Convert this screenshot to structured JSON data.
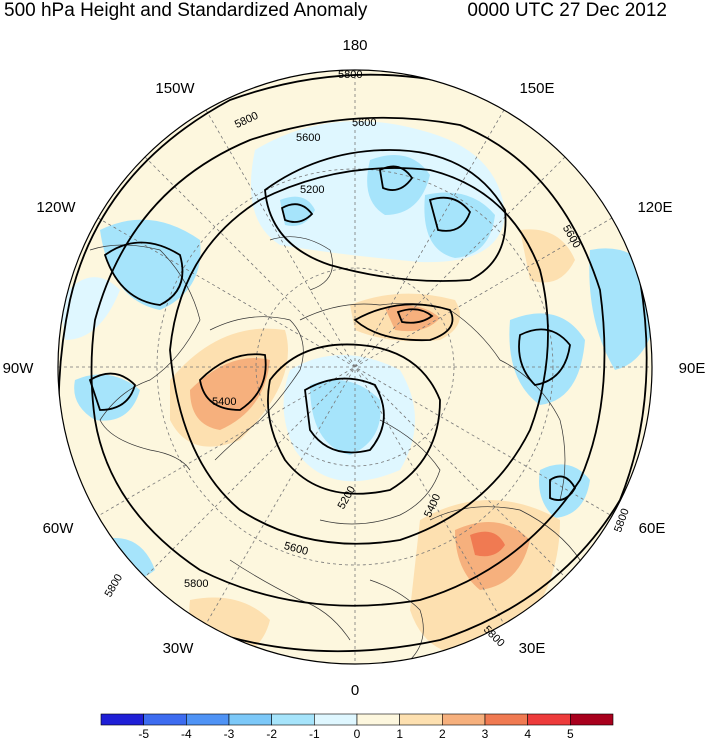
{
  "title": {
    "left": "500 hPa Height and Standardized Anomaly",
    "right": "0000 UTC 27 Dec 2012"
  },
  "longitude_labels": {
    "top": "180",
    "top_left": "150W",
    "top_right": "150E",
    "upper_left": "120W",
    "upper_right": "120E",
    "left": "90W",
    "right": "90E",
    "lower_left": "60W",
    "lower_right": "60E",
    "bottom_left": "30W",
    "bottom_right": "30E",
    "bottom": "0"
  },
  "contour_labels": [
    "5800",
    "5600",
    "5600",
    "5200",
    "5800",
    "5600",
    "5400",
    "5200",
    "5400",
    "5600",
    "5800",
    "5800",
    "5800",
    "5800"
  ],
  "colorbar": {
    "labels": [
      "-5",
      "-4",
      "-3",
      "-2",
      "-1",
      "0",
      "1",
      "2",
      "3",
      "4",
      "5"
    ],
    "colors": [
      "#1f1fd6",
      "#3d6cf0",
      "#4f93f5",
      "#7cc8f8",
      "#a6e4fb",
      "#dff7ff",
      "#fdf7de",
      "#fde0b0",
      "#f6b07d",
      "#f07a52",
      "#ed3b3b",
      "#a8001d"
    ]
  }
}
